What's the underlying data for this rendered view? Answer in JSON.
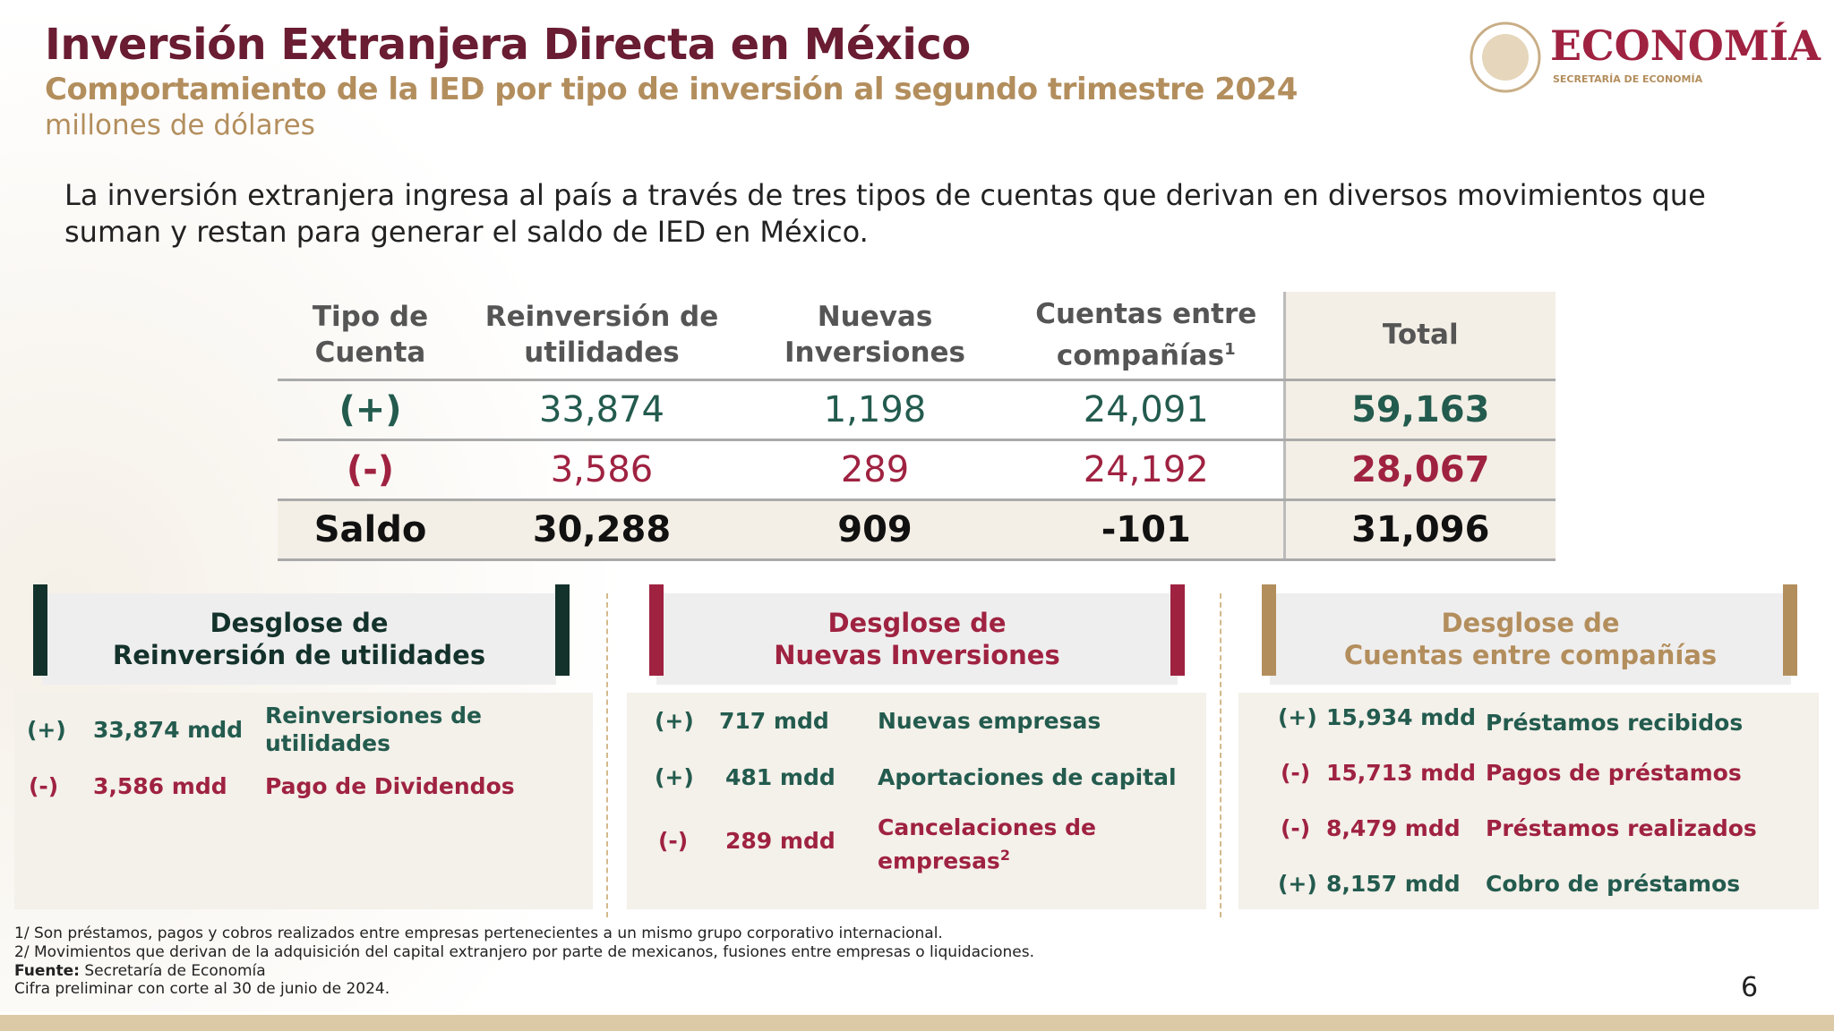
{
  "header": {
    "title": "Inversión Extranjera Directa en México",
    "subtitle": "Comportamiento de la IED por tipo de inversión al segundo trimestre 2024",
    "units": "millones de dólares"
  },
  "logo": {
    "name": "ECONOMÍA",
    "sub": "SECRETARÍA DE ECONOMÍA"
  },
  "intro": "La inversión extranjera ingresa al país a través de tres tipos de cuentas que derivan en diversos movimientos que suman y restan para generar el saldo de IED en México.",
  "table": {
    "headers": [
      "Tipo de Cuenta",
      "Reinversión de utilidades",
      "Nuevas Inversiones",
      "Cuentas entre compañías",
      "Total"
    ],
    "header_sup": "1",
    "rows": [
      {
        "label": "(+)",
        "values": [
          "33,874",
          "1,198",
          "24,091"
        ],
        "total": "59,163"
      },
      {
        "label": "(-)",
        "values": [
          "3,586",
          "289",
          "24,192"
        ],
        "total": "28,067"
      },
      {
        "label": "Saldo",
        "values": [
          "30,288",
          "909",
          "-101"
        ],
        "total": "31,096"
      }
    ]
  },
  "panels": [
    {
      "title1": "Desglose de",
      "title2": "Reinversión de utilidades",
      "color": "#13322b",
      "items": [
        {
          "sign": "(+)",
          "amount": "33,874 mdd",
          "label": "Reinversiones de utilidades"
        },
        {
          "sign": "(-)",
          "amount": "3,586 mdd",
          "label": "Pago de Dividendos"
        }
      ]
    },
    {
      "title1": "Desglose de",
      "title2": "Nuevas Inversiones",
      "color": "#9f2241",
      "items": [
        {
          "sign": "(+)",
          "amount": "717 mdd",
          "label": "Nuevas empresas"
        },
        {
          "sign": "(+)",
          "amount": "481 mdd",
          "label": "Aportaciones de capital"
        },
        {
          "sign": "(-)",
          "amount": "289 mdd",
          "label": "Cancelaciones de empresas",
          "sup": "2"
        }
      ]
    },
    {
      "title1": "Desglose de",
      "title2": "Cuentas entre compañías",
      "color": "#b38e5d",
      "items": [
        {
          "sign": "(+)",
          "amount": "15,934 mdd",
          "label": "Préstamos recibidos"
        },
        {
          "sign": "(-)",
          "amount": "15,713 mdd",
          "label": "Pagos de préstamos"
        },
        {
          "sign": "(-)",
          "amount": "8,479 mdd",
          "label": "Préstamos realizados"
        },
        {
          "sign": "(+)",
          "amount": "8,157 mdd",
          "label": "Cobro de préstamos"
        }
      ]
    }
  ],
  "footnotes": {
    "n1": "1/ Son préstamos, pagos y cobros realizados entre empresas pertenecientes a un mismo grupo corporativo internacional.",
    "n2": "2/ Movimientos que derivan de la adquisición del capital extranjero por parte de mexicanos, fusiones entre empresas o liquidaciones.",
    "source_label": "Fuente:",
    "source": " Secretaría de Economía",
    "cutoff": "Cifra preliminar con corte al 30 de junio de 2024."
  },
  "page_number": "6",
  "colors": {
    "maroon": "#691c32",
    "gold": "#b38e5d",
    "green": "#235b4e",
    "dark_green": "#13322b",
    "red": "#9f2241"
  }
}
